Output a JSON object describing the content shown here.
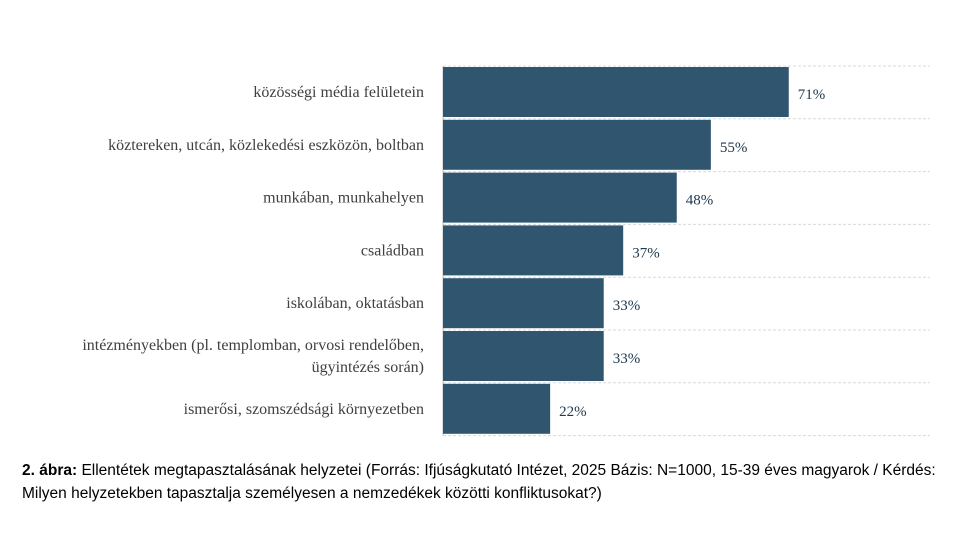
{
  "chart_data": {
    "type": "bar",
    "orientation": "horizontal",
    "categories": [
      "közösségi média felületein",
      "köztereken, utcán, közlekedési eszközön, boltban",
      "munkában, munkahelyen",
      "családban",
      "iskolában, oktatásban",
      "intézményekben (pl. templomban, orvosi rendelőben, ügyintézés során)",
      "ismerősi, szomszédsági környezetben"
    ],
    "category_lines": [
      [
        "közösségi média felületein"
      ],
      [
        "köztereken, utcán, közlekedési eszközön, boltban"
      ],
      [
        "munkában, munkahelyen"
      ],
      [
        "családban"
      ],
      [
        "iskolában, oktatásban"
      ],
      [
        "intézményekben (pl. templomban, orvosi rendelőben,",
        "ügyintézés során)"
      ],
      [
        "ismerősi, szomszédsági környezetben"
      ]
    ],
    "values": [
      71,
      55,
      48,
      37,
      33,
      33,
      22
    ],
    "value_labels": [
      "71%",
      "55%",
      "48%",
      "37%",
      "33%",
      "33%",
      "22%"
    ],
    "unit": "%",
    "xlim": [
      0,
      100
    ],
    "bar_color": "#30566f",
    "grid": "dashed horizontal separators",
    "legend": "none"
  },
  "caption": {
    "label": "2. ábra:",
    "text": " Ellentétek megtapasztalásának helyzetei (Forrás: Ifjúságkutató Intézet, 2025 Bázis: N=1000, 15-39 éves magyarok / Kérdés: Milyen helyzetekben tapasztalja személyesen a nemzedékek közötti konfliktusokat?)"
  }
}
